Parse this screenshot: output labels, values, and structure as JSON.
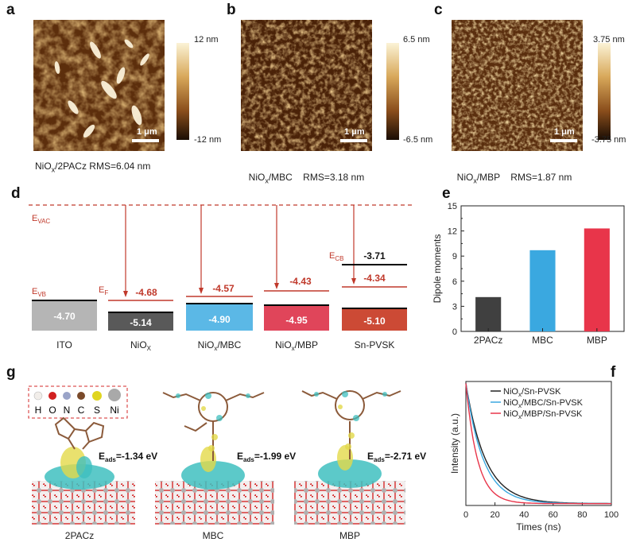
{
  "panel_a": {
    "letter": "a",
    "caption_pre": "NiO",
    "caption_sub": "x",
    "caption_post": "/2PACz RMS=6.04 nm",
    "cbar_top": "12 nm",
    "cbar_bottom": "-12 nm",
    "scale": "1 μm"
  },
  "panel_b": {
    "letter": "b",
    "caption_pre": "NiO",
    "caption_sub": "x",
    "caption_post": "/MBC    RMS=3.18 nm",
    "cbar_top": "6.5 nm",
    "cbar_bottom": "-6.5 nm",
    "scale": "1 μm"
  },
  "panel_c": {
    "letter": "c",
    "caption_pre": "NiO",
    "caption_sub": "x",
    "caption_post": "/MBP    RMS=1.87 nm",
    "cbar_top": "3.75 nm",
    "cbar_bottom": "-3.75 nm",
    "scale": "1 μm"
  },
  "panel_d": {
    "letter": "d",
    "evac_main": "E",
    "evac_sub": "VAC",
    "evb_main": "E",
    "evb_sub": "VB",
    "ef_main": "E",
    "ef_sub": "F",
    "ecb_main": "E",
    "ecb_sub": "CB",
    "blocks": [
      {
        "name": "ITO",
        "name_sub": "",
        "vb": "-4.70",
        "fermi": "",
        "color": "#b5b5b5"
      },
      {
        "name": "NiO",
        "name_sub": "X",
        "vb": "-5.14",
        "fermi": "-4.68",
        "color": "#595959"
      },
      {
        "name": "NiO",
        "name_sub": "x",
        "name_post": "/MBC",
        "vb": "-4.90",
        "fermi": "-4.57",
        "color": "#5bb8e6"
      },
      {
        "name": "NiO",
        "name_sub": "x",
        "name_post": "/MBP",
        "vb": "-4.95",
        "fermi": "-4.43",
        "color": "#e0455a"
      },
      {
        "name": "Sn-PVSK",
        "name_sub": "",
        "vb": "-5.10",
        "fermi": "-4.34",
        "cb": "-3.71",
        "color": "#cc4a35"
      }
    ],
    "accent": "#c0392b"
  },
  "panel_g": {
    "letter": "g",
    "legend": [
      "H",
      "O",
      "N",
      "C",
      "S",
      "Ni"
    ],
    "legend_colors": [
      "#f2eeea",
      "#d12020",
      "#9aa4c8",
      "#7a4a2a",
      "#e0d520",
      "#a9a9a9"
    ],
    "molecules": [
      {
        "name": "2PACz",
        "eads_main": "E",
        "eads_sub": "ads",
        "eads_val": "=-1.34 eV"
      },
      {
        "name": "MBC",
        "eads_main": "E",
        "eads_sub": "ads",
        "eads_val": "=-1.99 eV"
      },
      {
        "name": "MBP",
        "eads_main": "E",
        "eads_sub": "ads",
        "eads_val": "=-2.71 eV"
      }
    ]
  },
  "chart_data": [
    {
      "id": "e",
      "type": "bar",
      "categories": [
        "2PACz",
        "MBC",
        "MBP"
      ],
      "values": [
        4.1,
        9.7,
        12.3
      ],
      "colors": [
        "#404040",
        "#3aa8e0",
        "#e8354a"
      ],
      "ylabel": "Dipole moments",
      "xlabel": "",
      "ylim": [
        0,
        15
      ],
      "yticks": [
        "0",
        "3",
        "6",
        "9",
        "12",
        "15"
      ],
      "grid": false
    },
    {
      "id": "f",
      "type": "line",
      "xlabel": "Times (ns)",
      "ylabel": "Intensity (a.u.)",
      "xlim": [
        0,
        100
      ],
      "xticks": [
        "0",
        "20",
        "40",
        "60",
        "80",
        "100"
      ],
      "legend_position": "top-right",
      "series": [
        {
          "name_pre": "NiO",
          "name_sub": "x",
          "name_post": "/Sn-PVSK",
          "color": "#222222",
          "tau": 13.5
        },
        {
          "name_pre": "NiO",
          "name_sub": "x",
          "name_post": "/MBC/Sn-PVSK",
          "color": "#3aa8e0",
          "tau": 12
        },
        {
          "name_pre": "NiO",
          "name_sub": "x",
          "name_post": "/MBP/Sn-PVSK",
          "color": "#e8354a",
          "tau": 8
        }
      ],
      "grid": false
    }
  ]
}
